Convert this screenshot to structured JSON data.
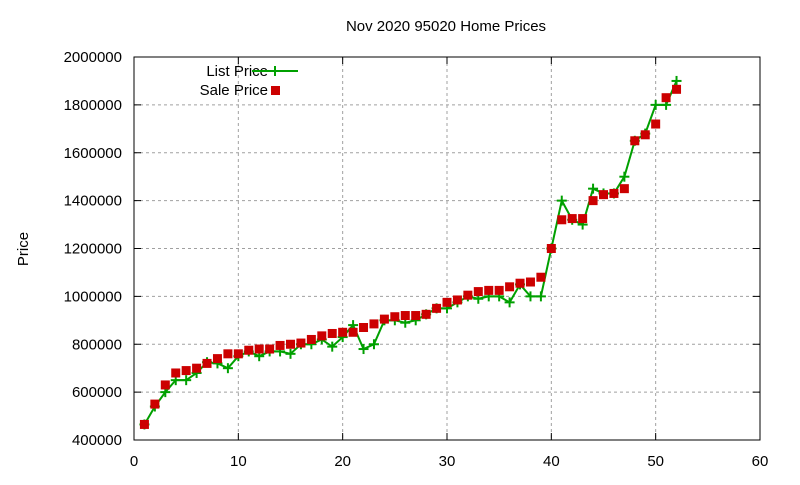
{
  "chart_data": {
    "type": "line",
    "title": "Nov 2020 95020 Home Prices",
    "xlabel": "",
    "ylabel": "Price",
    "xlim": [
      0,
      60
    ],
    "ylim": [
      400000,
      2000000
    ],
    "xticks": [
      "0",
      "10",
      "20",
      "30",
      "40",
      "50",
      "60"
    ],
    "yticks": [
      "400000",
      "600000",
      "800000",
      "1000000",
      "1200000",
      "1400000",
      "1600000",
      "1800000",
      "2000000"
    ],
    "grid": true,
    "legend_position": "top-left",
    "x": [
      1,
      2,
      3,
      4,
      5,
      6,
      7,
      8,
      9,
      10,
      11,
      12,
      13,
      14,
      15,
      16,
      17,
      18,
      19,
      20,
      21,
      22,
      23,
      24,
      25,
      26,
      27,
      28,
      29,
      30,
      31,
      32,
      33,
      34,
      35,
      36,
      37,
      38,
      39,
      40,
      41,
      42,
      43,
      44,
      45,
      46,
      47,
      48,
      49,
      50,
      51,
      52
    ],
    "series": [
      {
        "name": "List Price",
        "style": "linespoints",
        "color": "#00a000",
        "values": [
          465000,
          540000,
          600000,
          650000,
          650000,
          680000,
          725000,
          720000,
          700000,
          750000,
          770000,
          750000,
          770000,
          770000,
          760000,
          800000,
          800000,
          820000,
          790000,
          830000,
          880000,
          780000,
          800000,
          900000,
          900000,
          890000,
          900000,
          925000,
          950000,
          950000,
          975000,
          1000000,
          990000,
          1000000,
          1000000,
          975000,
          1050000,
          1000000,
          1000000,
          1200000,
          1400000,
          1320000,
          1300000,
          1450000,
          1430000,
          1430000,
          1500000,
          1650000,
          1680000,
          1800000,
          1800000,
          1900000
        ]
      },
      {
        "name": "Sale Price",
        "style": "points",
        "color": "#cc0000",
        "values": [
          465000,
          550000,
          630000,
          680000,
          690000,
          700000,
          720000,
          740000,
          760000,
          760000,
          775000,
          780000,
          780000,
          795000,
          800000,
          805000,
          820000,
          835000,
          845000,
          850000,
          850000,
          870000,
          885000,
          905000,
          915000,
          920000,
          920000,
          925000,
          950000,
          975000,
          985000,
          1005000,
          1020000,
          1025000,
          1025000,
          1040000,
          1055000,
          1060000,
          1080000,
          1200000,
          1320000,
          1325000,
          1325000,
          1400000,
          1425000,
          1430000,
          1450000,
          1650000,
          1675000,
          1720000,
          1830000,
          1865000
        ]
      }
    ]
  }
}
